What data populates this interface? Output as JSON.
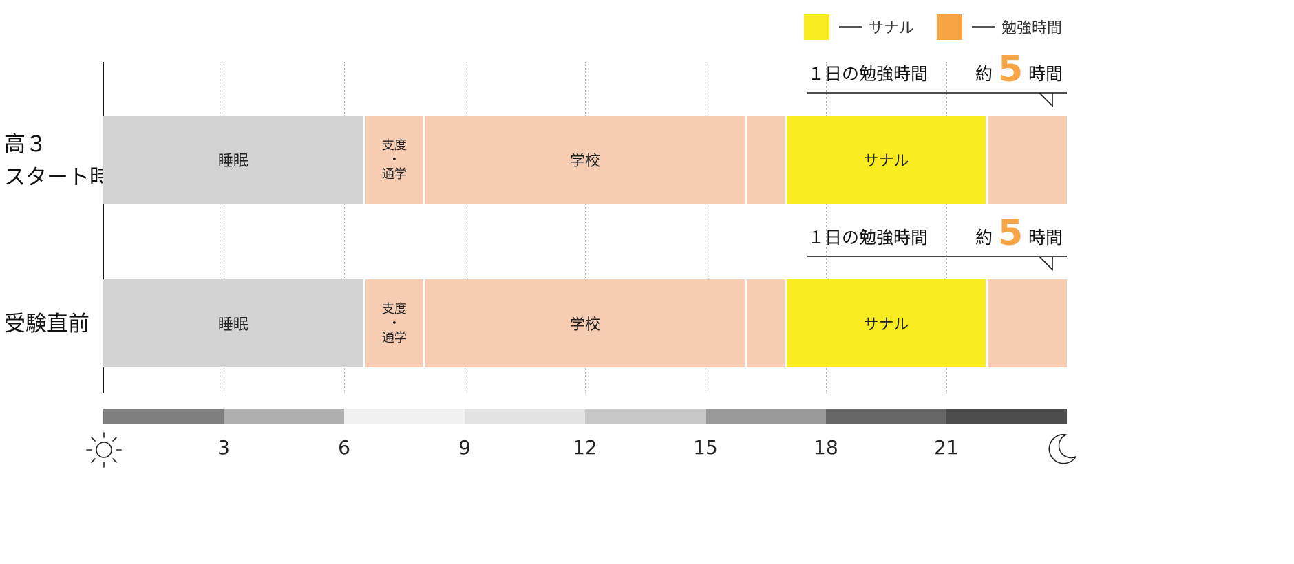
{
  "legend": [
    {
      "label": "サナル",
      "color": "#f9ec20"
    },
    {
      "label": "勉強時間",
      "color": "#f7a444"
    }
  ],
  "rows": [
    {
      "label_lines": [
        "高３",
        "スタート時"
      ],
      "callout": {
        "title": "１日の勉強時間",
        "approx": "約",
        "value": "5",
        "unit": "時間"
      },
      "segments": [
        {
          "label": "睡眠",
          "start": 0,
          "end": 6.5,
          "kind": "sleep"
        },
        {
          "label_lines": [
            "支度",
            "・",
            "通学"
          ],
          "start": 6.5,
          "end": 8,
          "kind": "other"
        },
        {
          "label": "学校",
          "start": 8,
          "end": 16,
          "kind": "other"
        },
        {
          "label": "",
          "start": 16,
          "end": 17,
          "kind": "other"
        },
        {
          "label": "サナル",
          "start": 17,
          "end": 22,
          "kind": "sanaru"
        },
        {
          "label": "",
          "start": 22,
          "end": 24,
          "kind": "other"
        }
      ]
    },
    {
      "label_lines": [
        "受験直前"
      ],
      "callout": {
        "title": "１日の勉強時間",
        "approx": "約",
        "value": "5",
        "unit": "時間"
      },
      "segments": [
        {
          "label": "睡眠",
          "start": 0,
          "end": 6.5,
          "kind": "sleep"
        },
        {
          "label_lines": [
            "支度",
            "・",
            "通学"
          ],
          "start": 6.5,
          "end": 8,
          "kind": "other"
        },
        {
          "label": "学校",
          "start": 8,
          "end": 16,
          "kind": "other"
        },
        {
          "label": "",
          "start": 16,
          "end": 17,
          "kind": "other"
        },
        {
          "label": "サナル",
          "start": 17,
          "end": 22,
          "kind": "sanaru"
        },
        {
          "label": "",
          "start": 22,
          "end": 24,
          "kind": "other"
        }
      ]
    }
  ],
  "segment_colors": {
    "sleep": "#d3d3d3",
    "other": "#f6cdb2",
    "sanaru": "#f9ec20"
  },
  "time_axis": {
    "ticks": [
      "3",
      "6",
      "9",
      "12",
      "15",
      "18",
      "21"
    ],
    "tick_hours": [
      3,
      6,
      9,
      12,
      15,
      18,
      21
    ],
    "band_colors": [
      "#7f7f7f",
      "#afafaf",
      "#f1f1f1",
      "#e3e3e3",
      "#c8c8c8",
      "#999999",
      "#676767",
      "#4d4d4d"
    ],
    "start_icon": "sun-icon",
    "end_icon": "moon-icon"
  }
}
